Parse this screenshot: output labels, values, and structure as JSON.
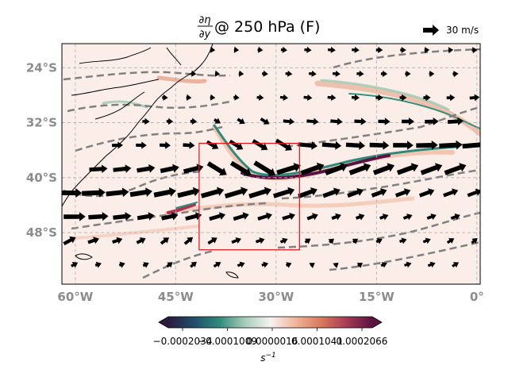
{
  "title": {
    "fraction_numerator": "∂η",
    "fraction_denominator": "∂y",
    "rest": " @ 250 hPa (F)"
  },
  "vector_key": {
    "label": "30 m/s",
    "speed": 30
  },
  "map": {
    "lon_range": [
      -62,
      0.5
    ],
    "lat_range": [
      -55.5,
      -20.5
    ],
    "lat_ticks": [
      {
        "value": -24,
        "label": "24°S"
      },
      {
        "value": -32,
        "label": "32°S"
      },
      {
        "value": -40,
        "label": "40°S"
      },
      {
        "value": -48,
        "label": "48°S"
      }
    ],
    "lon_ticks": [
      {
        "value": -60,
        "label": "60°W"
      },
      {
        "value": -45,
        "label": "45°W"
      },
      {
        "value": -30,
        "label": "30°W"
      },
      {
        "value": -15,
        "label": "15°W"
      },
      {
        "value": 0,
        "label": "0°"
      }
    ],
    "grid": true,
    "region_box": {
      "lon": [
        -41.5,
        -26.5
      ],
      "lat": [
        -50.5,
        -35
      ]
    },
    "colors": {
      "box": "#e8101a",
      "contour": "#808080",
      "coast": "#000000",
      "tick_label": "#8c8c8c",
      "arrow": "#000000"
    }
  },
  "colorbar": {
    "tick_labels": [
      "−0.0002034",
      "−0.0001009",
      "0.0000016",
      "0.0001041",
      "0.0002066"
    ],
    "unit_label": "s",
    "unit_exponent": "−1",
    "colors": [
      "#2b1a3f",
      "#1f4e6a",
      "#2e8a7c",
      "#a6ccb8",
      "#f7f2ef",
      "#f0b49a",
      "#d9775a",
      "#a63a55",
      "#5a1240"
    ]
  }
}
